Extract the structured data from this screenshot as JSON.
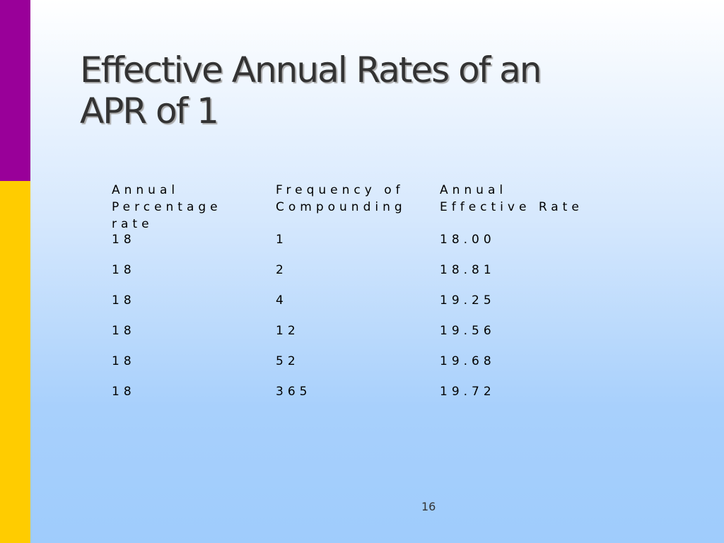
{
  "slide": {
    "title_line1": "Effective Annual Rates of an",
    "title_line2": "APR of 1",
    "page_number": "16",
    "colors": {
      "left_bar_top": "#990099",
      "left_bar_bottom": "#ffcc00",
      "background_top": "#ffffff",
      "background_bottom": "#9fccfc"
    }
  },
  "table": {
    "headers": [
      [
        "Annual",
        "Percentage",
        "rate"
      ],
      [
        "Frequency of",
        "Compounding"
      ],
      [
        "Annual",
        "Effective Rate"
      ]
    ],
    "rows": [
      [
        "18",
        "1",
        "18.00"
      ],
      [
        "18",
        "2",
        "18.81"
      ],
      [
        "18",
        "4",
        "19.25"
      ],
      [
        "18",
        "12",
        "19.56"
      ],
      [
        "18",
        "52",
        "19.68"
      ],
      [
        "18",
        "365",
        "19.72"
      ]
    ]
  }
}
